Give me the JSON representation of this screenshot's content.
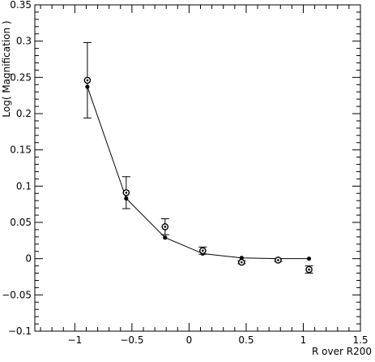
{
  "chart_data": {
    "type": "scatter",
    "title": "",
    "xlabel": "R over R200",
    "ylabel": "Log( Magnification )",
    "xlim": [
      -1.35,
      1.5
    ],
    "ylim": [
      -0.1,
      0.35
    ],
    "x_ticks": [
      -1,
      -0.5,
      0,
      0.5,
      1,
      1.5
    ],
    "x_tick_labels": [
      "−1",
      "−0.5",
      "0",
      "0.5",
      "1",
      "1.5"
    ],
    "y_ticks": [
      -0.1,
      -0.05,
      0,
      0.05,
      0.1,
      0.15,
      0.2,
      0.25,
      0.3,
      0.35
    ],
    "y_tick_labels": [
      "−0.1",
      "−0.05",
      "0",
      "0.05",
      "0.1",
      "0.15",
      "0.2",
      "0.25",
      "0.3",
      "0.35"
    ],
    "grid": false,
    "series": [
      {
        "marker": "open-circle-with-dot",
        "x": [
          -0.89,
          -0.55,
          -0.21,
          0.12,
          0.46,
          0.78,
          1.05
        ],
        "y": [
          0.246,
          0.091,
          0.044,
          0.011,
          -0.005,
          -0.002,
          -0.015
        ],
        "err": [
          0.052,
          0.022,
          0.011,
          0.005,
          0.002,
          0.002,
          0.005
        ]
      },
      {
        "marker": "filled-dot-line",
        "x": [
          -0.89,
          -0.55,
          -0.21,
          0.12,
          0.46,
          0.78,
          1.05
        ],
        "y": [
          0.237,
          0.083,
          0.029,
          0.007,
          0.001,
          0.0,
          0.0
        ]
      }
    ]
  }
}
